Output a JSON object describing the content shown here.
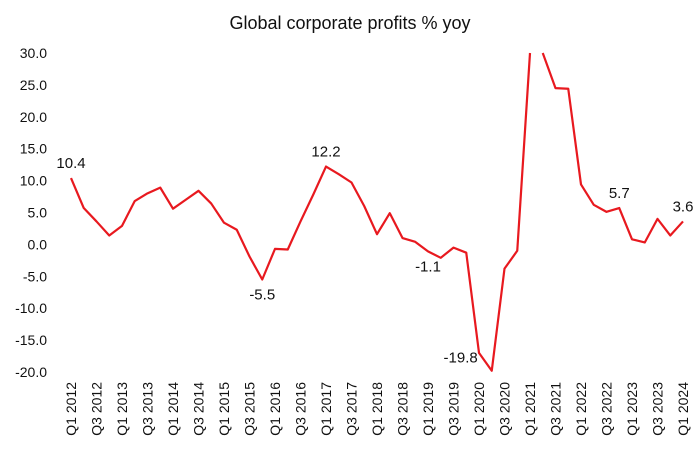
{
  "chart_data": {
    "type": "line",
    "title": "Global corporate profits % yoy",
    "xlabel": "",
    "ylabel": "",
    "ylim": [
      -20,
      30
    ],
    "y_ticks": [
      "30.0",
      "25.0",
      "20.0",
      "15.0",
      "10.0",
      "5.0",
      "0.0",
      "-5.0",
      "-10.0",
      "-15.0",
      "-20.0"
    ],
    "x_tick_labels": [
      "Q1 2012",
      "Q3 2012",
      "Q1 2013",
      "Q3 2013",
      "Q1 2014",
      "Q3 2014",
      "Q1 2015",
      "Q3 2015",
      "Q1 2016",
      "Q3 2016",
      "Q1 2017",
      "Q3 2017",
      "Q1 2018",
      "Q3 2018",
      "Q1 2019",
      "Q3 2019",
      "Q1 2020",
      "Q3 2020",
      "Q1 2021",
      "Q3 2021",
      "Q1 2022",
      "Q3 2022",
      "Q1 2023",
      "Q3 2023",
      "Q1 2024"
    ],
    "grid": false,
    "legend": "none",
    "series_color": "#e8191f",
    "categories": [
      "Q1 2012",
      "Q2 2012",
      "Q3 2012",
      "Q4 2012",
      "Q1 2013",
      "Q2 2013",
      "Q3 2013",
      "Q4 2013",
      "Q1 2014",
      "Q2 2014",
      "Q3 2014",
      "Q4 2014",
      "Q1 2015",
      "Q2 2015",
      "Q3 2015",
      "Q4 2015",
      "Q1 2016",
      "Q2 2016",
      "Q3 2016",
      "Q4 2016",
      "Q1 2017",
      "Q2 2017",
      "Q3 2017",
      "Q4 2017",
      "Q1 2018",
      "Q2 2018",
      "Q3 2018",
      "Q4 2018",
      "Q1 2019",
      "Q2 2019",
      "Q3 2019",
      "Q4 2019",
      "Q1 2020",
      "Q2 2020",
      "Q3 2020",
      "Q4 2020",
      "Q1 2021",
      "Q2 2021",
      "Q3 2021",
      "Q4 2021",
      "Q1 2022",
      "Q2 2022",
      "Q3 2022",
      "Q4 2022",
      "Q1 2023",
      "Q2 2023",
      "Q3 2023",
      "Q4 2023",
      "Q1 2024"
    ],
    "series": [
      {
        "values": [
          10.4,
          5.7,
          3.6,
          1.4,
          2.9,
          6.8,
          8.0,
          8.9,
          5.6,
          7.0,
          8.4,
          6.4,
          3.4,
          2.3,
          -1.9,
          -5.5,
          -0.7,
          -0.8,
          3.6,
          7.8,
          12.2,
          11.0,
          9.7,
          6.0,
          1.6,
          4.9,
          1.0,
          0.4,
          -1.1,
          -2.1,
          -0.5,
          -1.3,
          -17.0,
          -19.8,
          -3.8,
          -1.0,
          30.0,
          30.0,
          24.5,
          24.4,
          9.4,
          6.2,
          5.1,
          5.7,
          0.8,
          0.3,
          4.0,
          1.4,
          3.6
        ]
      }
    ],
    "clipped_segment": [
      36,
      37
    ],
    "annotations": [
      {
        "index": 0,
        "text": "10.4",
        "pos": "above"
      },
      {
        "index": 15,
        "text": "-5.5",
        "pos": "below"
      },
      {
        "index": 20,
        "text": "12.2",
        "pos": "above"
      },
      {
        "index": 28,
        "text": "-1.1",
        "pos": "below"
      },
      {
        "index": 33,
        "text": "-19.8",
        "pos": "left"
      },
      {
        "index": 43,
        "text": "5.7",
        "pos": "above"
      },
      {
        "index": 48,
        "text": "3.6",
        "pos": "above"
      }
    ]
  }
}
